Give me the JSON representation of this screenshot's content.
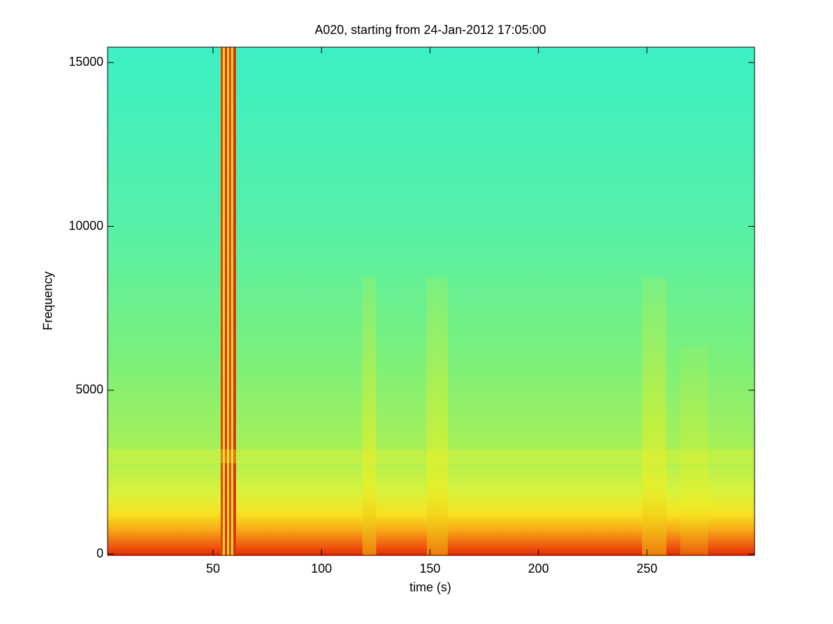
{
  "chart_data": {
    "type": "spectrogram",
    "title": "A020, starting from 24-Jan-2012 17:05:00",
    "x_label": "time (s)",
    "y_label": "Frequency",
    "xlim": [
      1.4,
      299.6
    ],
    "xticks": [
      50,
      100,
      150,
      200,
      250
    ],
    "ylim": [
      -40,
      15470
    ],
    "yticks": [
      0,
      5000,
      10000,
      15000
    ]
  }
}
